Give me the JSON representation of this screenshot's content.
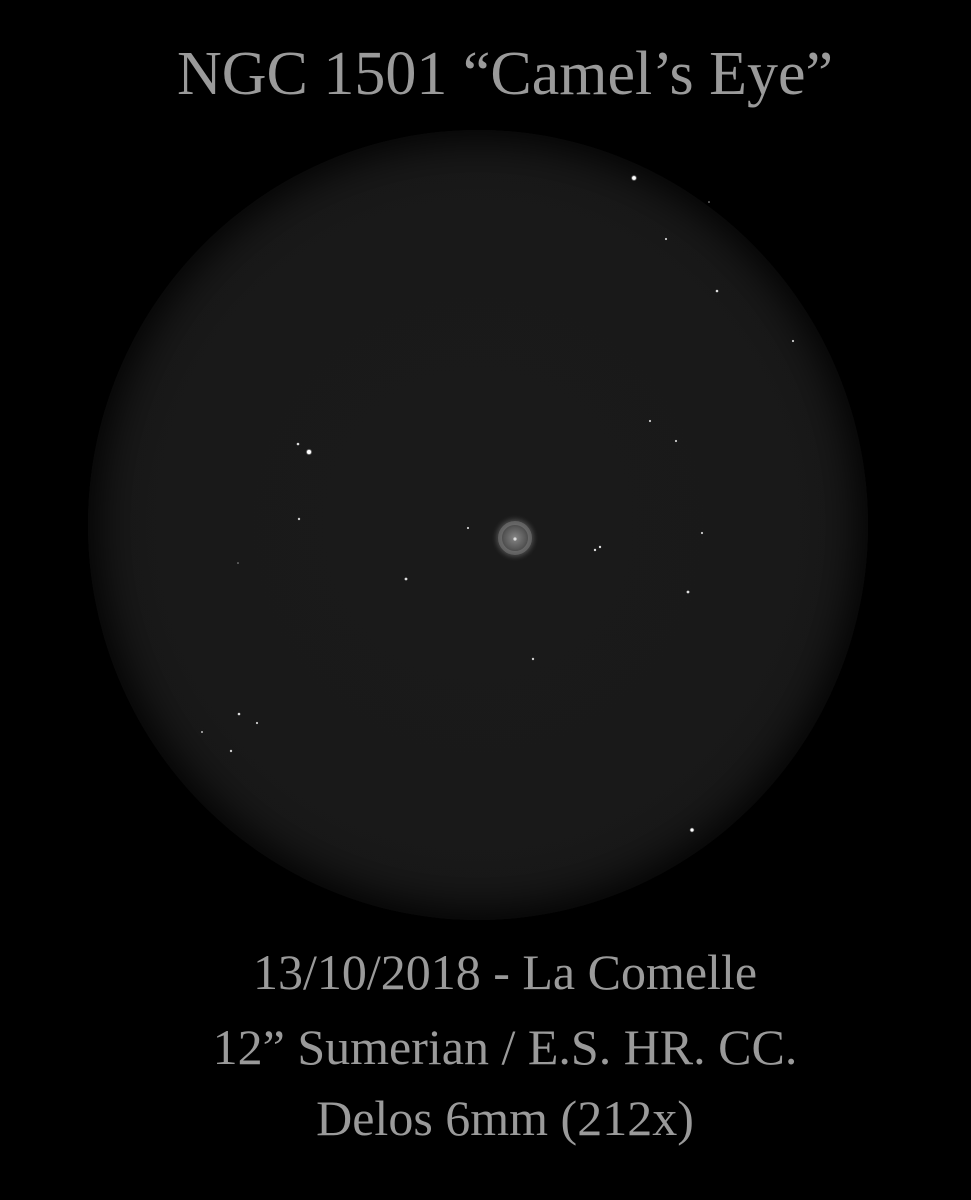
{
  "title": "NGC 1501 “Camel’s Eye”",
  "caption": {
    "line1": "13/10/2018 - La Comelle",
    "line2": "12” Sumerian / E.S. HR. CC.",
    "line3": "Delos 6mm (212x)"
  },
  "colors": {
    "background": "#000000",
    "field": "#1a1a1a",
    "text": "#9a9a9a",
    "stars": "#ffffff",
    "nebula": "#8a8a8a"
  }
}
